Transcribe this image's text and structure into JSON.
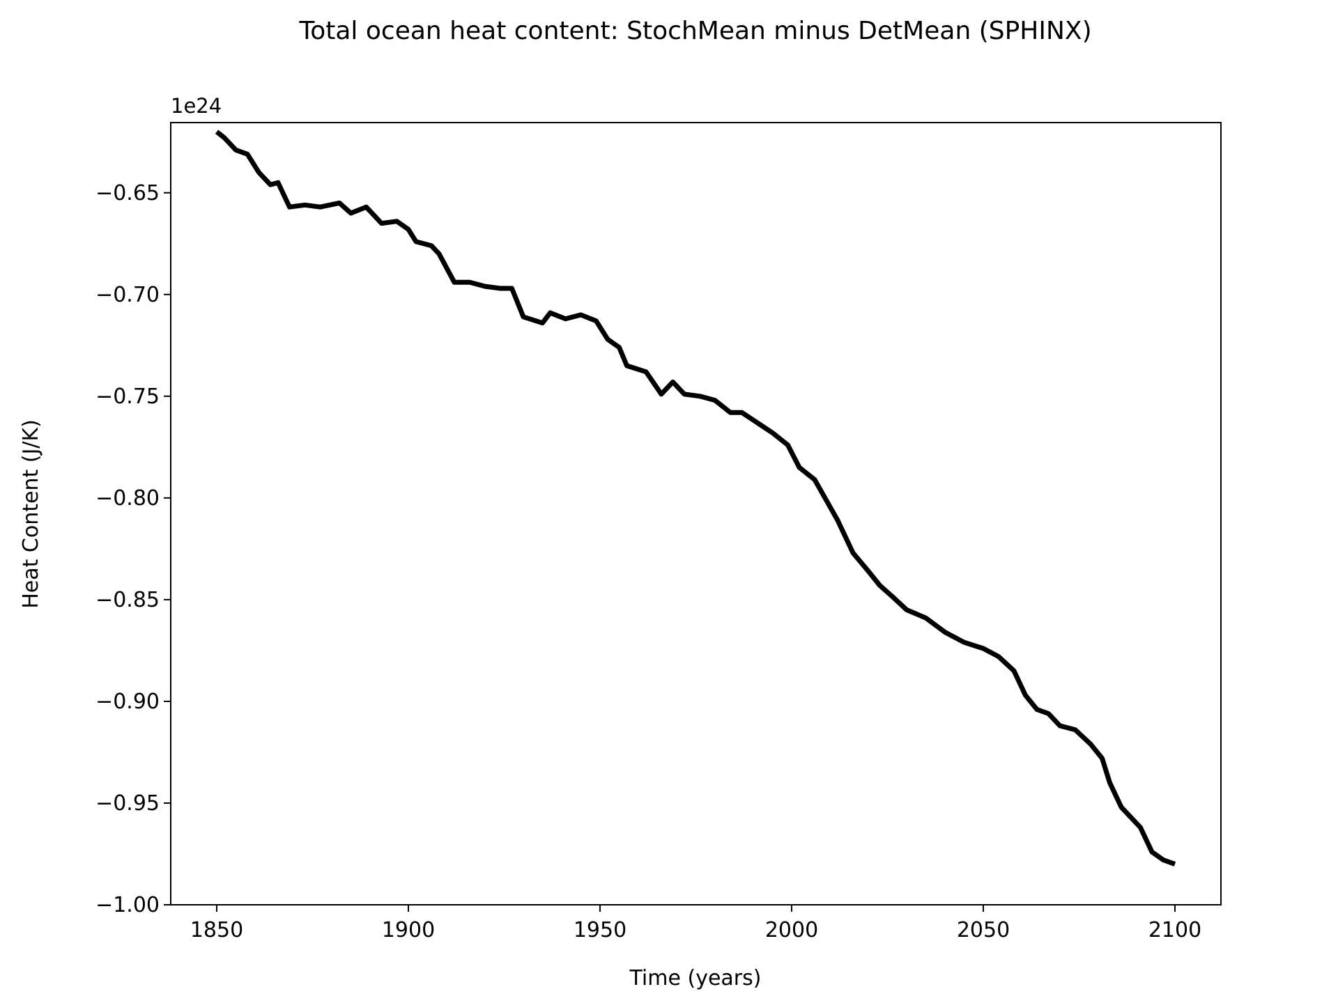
{
  "chart_data": {
    "type": "line",
    "title": "Total ocean heat content: StochMean minus DetMean (SPHINX)",
    "xlabel": "Time (years)",
    "ylabel": "Heat Content (J/K)",
    "offset_label": "1e24",
    "xlim": [
      1838,
      2112
    ],
    "ylim": [
      -1.0,
      -0.6155
    ],
    "x_ticks": [
      1850,
      1900,
      1950,
      2000,
      2050,
      2100
    ],
    "x_tick_labels": [
      "1850",
      "1900",
      "1950",
      "2000",
      "2050",
      "2100"
    ],
    "y_ticks": [
      -1.0,
      -0.95,
      -0.9,
      -0.85,
      -0.8,
      -0.75,
      -0.7,
      -0.65
    ],
    "y_tick_labels": [
      "−1.00",
      "−0.95",
      "−0.90",
      "−0.85",
      "−0.80",
      "−0.75",
      "−0.70",
      "−0.65"
    ],
    "grid": false,
    "series": [
      {
        "name": "StochMean minus DetMean",
        "color": "#000000",
        "x": [
          1850,
          1852,
          1855,
          1858,
          1861,
          1864,
          1866,
          1869,
          1873,
          1877,
          1882,
          1885,
          1889,
          1893,
          1897,
          1900,
          1902,
          1906,
          1908,
          1912,
          1916,
          1920,
          1924,
          1927,
          1930,
          1935,
          1937,
          1941,
          1945,
          1949,
          1952,
          1955,
          1957,
          1962,
          1966,
          1969,
          1972,
          1976,
          1980,
          1984,
          1987,
          1991,
          1995,
          1999,
          2002,
          2006,
          2009,
          2012,
          2016,
          2020,
          2023,
          2026,
          2030,
          2035,
          2040,
          2045,
          2050,
          2054,
          2058,
          2061,
          2064,
          2067,
          2070,
          2074,
          2078,
          2081,
          2083,
          2086,
          2089,
          2091,
          2094,
          2097,
          2100
        ],
        "y": [
          -0.62,
          -0.623,
          -0.629,
          -0.631,
          -0.64,
          -0.646,
          -0.645,
          -0.657,
          -0.656,
          -0.657,
          -0.655,
          -0.66,
          -0.657,
          -0.665,
          -0.664,
          -0.668,
          -0.674,
          -0.676,
          -0.68,
          -0.694,
          -0.694,
          -0.696,
          -0.697,
          -0.697,
          -0.711,
          -0.714,
          -0.709,
          -0.712,
          -0.71,
          -0.713,
          -0.722,
          -0.726,
          -0.735,
          -0.738,
          -0.749,
          -0.743,
          -0.749,
          -0.75,
          -0.752,
          -0.758,
          -0.758,
          -0.763,
          -0.768,
          -0.774,
          -0.785,
          -0.791,
          -0.801,
          -0.811,
          -0.827,
          -0.836,
          -0.843,
          -0.848,
          -0.855,
          -0.859,
          -0.866,
          -0.871,
          -0.874,
          -0.878,
          -0.885,
          -0.897,
          -0.904,
          -0.906,
          -0.912,
          -0.914,
          -0.921,
          -0.928,
          -0.94,
          -0.952,
          -0.958,
          -0.962,
          -0.974,
          -0.978,
          -0.98
        ]
      }
    ]
  }
}
